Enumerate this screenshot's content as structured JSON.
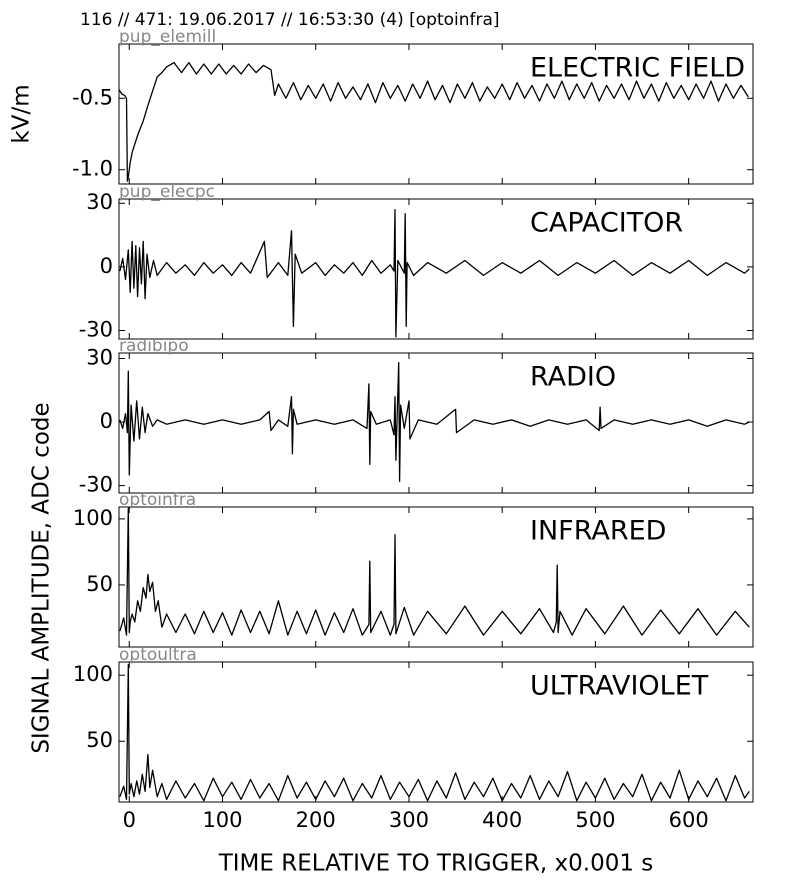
{
  "title": "116 // 471:   19.06.2017 // 16:53:30 (4)  [optoinfra]",
  "xlabel": "TIME RELATIVE TO TRIGGER,   x0.001 s",
  "ylabel": "SIGNAL AMPLITUDE,  ADC code",
  "chart_data": [
    {
      "type": "line",
      "label": "pup_elemill",
      "title": "ELECTRIC FIELD",
      "ylabel": "kV/m",
      "color": "#000000",
      "xlim": [
        -11,
        669
      ],
      "xticks": [
        0,
        100,
        200,
        300,
        400,
        500,
        600
      ],
      "ylim": [
        -1.1,
        -0.12
      ],
      "yticks": [
        -0.5,
        {
          "value": -1,
          "label": "-1.0"
        }
      ],
      "x": [
        -11,
        -8,
        -5,
        -3,
        -2,
        -1,
        1,
        3,
        6,
        10,
        15,
        20,
        25,
        30,
        35,
        40,
        48,
        56,
        64,
        72,
        80,
        88,
        96,
        104,
        112,
        120,
        128,
        136,
        144,
        152,
        156,
        160,
        168,
        176,
        184,
        192,
        200,
        208,
        216,
        224,
        232,
        240,
        248,
        256,
        264,
        272,
        280,
        288,
        296,
        304,
        312,
        320,
        328,
        336,
        344,
        352,
        360,
        368,
        376,
        384,
        392,
        400,
        408,
        416,
        424,
        432,
        440,
        448,
        456,
        464,
        472,
        480,
        488,
        496,
        504,
        512,
        520,
        528,
        536,
        544,
        552,
        560,
        568,
        576,
        584,
        592,
        600,
        608,
        616,
        624,
        632,
        640,
        648,
        656,
        664
      ],
      "values": [
        -0.44,
        -0.47,
        -0.48,
        -0.5,
        -1.08,
        -1.05,
        -0.95,
        -0.88,
        -0.82,
        -0.74,
        -0.66,
        -0.55,
        -0.45,
        -0.35,
        -0.32,
        -0.28,
        -0.25,
        -0.32,
        -0.25,
        -0.33,
        -0.26,
        -0.33,
        -0.26,
        -0.33,
        -0.27,
        -0.33,
        -0.26,
        -0.32,
        -0.27,
        -0.3,
        -0.48,
        -0.4,
        -0.5,
        -0.39,
        -0.51,
        -0.41,
        -0.5,
        -0.4,
        -0.52,
        -0.39,
        -0.5,
        -0.42,
        -0.51,
        -0.4,
        -0.53,
        -0.39,
        -0.5,
        -0.41,
        -0.52,
        -0.4,
        -0.5,
        -0.38,
        -0.51,
        -0.41,
        -0.53,
        -0.4,
        -0.5,
        -0.39,
        -0.52,
        -0.42,
        -0.5,
        -0.4,
        -0.51,
        -0.39,
        -0.5,
        -0.41,
        -0.52,
        -0.4,
        -0.5,
        -0.38,
        -0.51,
        -0.4,
        -0.5,
        -0.39,
        -0.52,
        -0.41,
        -0.5,
        -0.4,
        -0.51,
        -0.38,
        -0.5,
        -0.4,
        -0.52,
        -0.39,
        -0.5,
        -0.41,
        -0.51,
        -0.4,
        -0.5,
        -0.38,
        -0.52,
        -0.4,
        -0.5,
        -0.41,
        -0.49
      ]
    },
    {
      "type": "line",
      "label": "pup_elecpc",
      "title": "CAPACITOR",
      "color": "#000000",
      "xlim": [
        -11,
        669
      ],
      "xticks": [
        0,
        100,
        200,
        300,
        400,
        500,
        600
      ],
      "ylim": [
        -34,
        32
      ],
      "yticks": [
        30,
        0,
        -30
      ],
      "x": [
        -10,
        -7,
        -4,
        -1,
        1,
        3,
        5,
        7,
        9,
        11,
        13,
        15,
        17,
        19,
        22,
        26,
        30,
        40,
        50,
        60,
        70,
        80,
        90,
        100,
        110,
        120,
        130,
        145,
        148,
        160,
        170,
        174,
        176,
        178,
        185,
        200,
        210,
        220,
        230,
        240,
        250,
        260,
        270,
        280,
        284,
        285,
        286,
        288,
        295,
        296,
        297,
        298,
        305,
        320,
        340,
        360,
        380,
        400,
        420,
        440,
        460,
        480,
        500,
        520,
        540,
        560,
        580,
        600,
        620,
        640,
        660,
        665
      ],
      "values": [
        -2,
        4,
        -6,
        8,
        -12,
        12,
        -10,
        10,
        -14,
        9,
        -8,
        12,
        -15,
        6,
        -5,
        3,
        -4,
        2,
        -3,
        1,
        -4,
        2,
        -3,
        1,
        -4,
        2,
        -3,
        12,
        -5,
        2,
        -4,
        17,
        -28,
        6,
        -3,
        2,
        -4,
        1,
        -3,
        2,
        -4,
        3,
        -3,
        1,
        -2,
        27,
        -33,
        3,
        -3,
        25,
        -28,
        2,
        -4,
        2,
        -3,
        3,
        -4,
        2,
        -3,
        3,
        -4,
        2,
        -3,
        3,
        -4,
        2,
        -3,
        3,
        -4,
        2,
        -3,
        -1
      ]
    },
    {
      "type": "line",
      "label": "radibipo",
      "title": "RADIO",
      "color": "#000000",
      "xlim": [
        -11,
        669
      ],
      "xticks": [
        0,
        100,
        200,
        300,
        400,
        500,
        600
      ],
      "ylim": [
        -33.5,
        32.6
      ],
      "yticks": [
        30,
        0,
        -30
      ],
      "x": [
        -10,
        -7,
        -4,
        -2,
        -1,
        0,
        2,
        5,
        8,
        11,
        14,
        17,
        20,
        25,
        30,
        40,
        60,
        80,
        100,
        120,
        140,
        150,
        152,
        160,
        170,
        174,
        175,
        176,
        180,
        200,
        220,
        240,
        255,
        257,
        258,
        259,
        265,
        280,
        284,
        285,
        286,
        289,
        290,
        291,
        295,
        300,
        301,
        310,
        330,
        350,
        351,
        370,
        390,
        410,
        430,
        450,
        470,
        490,
        504,
        505,
        506,
        520,
        540,
        560,
        580,
        600,
        620,
        640,
        660,
        665
      ],
      "values": [
        1,
        -3,
        4,
        -5,
        24,
        -25,
        8,
        -9,
        10,
        -8,
        7,
        -5,
        4,
        -2,
        1,
        -1,
        1,
        -1,
        1,
        -1,
        1,
        5,
        -4,
        1,
        -2,
        12,
        -15,
        6,
        -1,
        1,
        -1,
        1,
        -3,
        18,
        -20,
        5,
        -1,
        1,
        -6,
        12,
        -18,
        28,
        -28,
        8,
        -3,
        10,
        -8,
        1,
        -1,
        6,
        -5,
        1,
        -1,
        1,
        -2,
        1,
        -1,
        1,
        -4,
        7,
        -3,
        1,
        -1,
        1,
        -1,
        1,
        -2,
        1,
        -1,
        0
      ]
    },
    {
      "type": "line",
      "label": "optoinfra",
      "title": "INFRARED",
      "color": "#000000",
      "xlim": [
        -11,
        669
      ],
      "xticks": [
        0,
        100,
        200,
        300,
        400,
        500,
        600
      ],
      "ylim": [
        3,
        109
      ],
      "yticks": [
        100,
        50
      ],
      "x": [
        -10,
        -6,
        -3,
        -1,
        0,
        1,
        3,
        6,
        9,
        12,
        15,
        18,
        20,
        22,
        25,
        28,
        31,
        35,
        40,
        50,
        60,
        70,
        80,
        90,
        100,
        110,
        120,
        130,
        140,
        150,
        160,
        170,
        180,
        190,
        200,
        210,
        220,
        230,
        240,
        250,
        257,
        258,
        259,
        270,
        280,
        284,
        285,
        286,
        295,
        305,
        320,
        340,
        360,
        380,
        400,
        420,
        440,
        455,
        458,
        459,
        460,
        462,
        475,
        490,
        510,
        530,
        550,
        570,
        590,
        610,
        630,
        650,
        665
      ],
      "values": [
        15,
        25,
        12,
        108,
        14,
        22,
        28,
        22,
        38,
        30,
        48,
        40,
        58,
        45,
        52,
        30,
        38,
        18,
        28,
        14,
        28,
        13,
        30,
        14,
        29,
        12,
        31,
        14,
        30,
        13,
        38,
        12,
        30,
        13,
        31,
        12,
        29,
        14,
        32,
        12,
        20,
        68,
        14,
        30,
        12,
        20,
        88,
        13,
        33,
        12,
        30,
        13,
        34,
        12,
        30,
        13,
        32,
        14,
        22,
        65,
        14,
        30,
        12,
        32,
        13,
        34,
        12,
        31,
        13,
        32,
        12,
        30,
        18
      ]
    },
    {
      "type": "line",
      "label": "optoultra",
      "title": "ULTRAVIOLET",
      "color": "#000000",
      "xlim": [
        -11,
        669
      ],
      "xticks": [
        0,
        100,
        200,
        300,
        400,
        500,
        600
      ],
      "ylim": [
        4,
        110
      ],
      "yticks": [
        100,
        50
      ],
      "x": [
        -10,
        -6,
        -3,
        -1,
        0,
        2,
        5,
        8,
        11,
        14,
        17,
        20,
        22,
        25,
        30,
        35,
        40,
        50,
        60,
        70,
        80,
        90,
        100,
        110,
        120,
        130,
        140,
        150,
        160,
        170,
        180,
        190,
        200,
        210,
        220,
        230,
        240,
        250,
        260,
        270,
        280,
        290,
        300,
        310,
        320,
        330,
        340,
        350,
        360,
        370,
        380,
        390,
        400,
        410,
        420,
        430,
        440,
        450,
        460,
        470,
        480,
        490,
        500,
        510,
        520,
        530,
        540,
        550,
        560,
        570,
        580,
        590,
        600,
        610,
        620,
        630,
        640,
        650,
        660,
        665
      ],
      "values": [
        8,
        16,
        6,
        108,
        10,
        18,
        8,
        20,
        10,
        25,
        12,
        40,
        15,
        28,
        8,
        18,
        6,
        20,
        7,
        18,
        5,
        22,
        8,
        19,
        6,
        21,
        7,
        18,
        5,
        24,
        7,
        19,
        6,
        20,
        8,
        22,
        5,
        18,
        7,
        24,
        6,
        19,
        8,
        21,
        5,
        20,
        7,
        26,
        6,
        19,
        8,
        22,
        5,
        18,
        7,
        24,
        6,
        20,
        8,
        27,
        5,
        19,
        7,
        22,
        6,
        18,
        8,
        25,
        5,
        19,
        7,
        28,
        6,
        20,
        8,
        22,
        5,
        24,
        7,
        12
      ]
    }
  ]
}
